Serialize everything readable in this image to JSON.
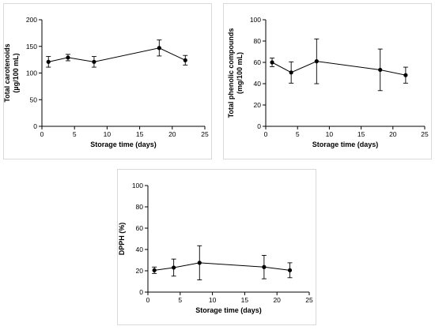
{
  "chart_data": [
    {
      "type": "line",
      "xlabel": "Storage time (days)",
      "ylabel": [
        "Total carotenoids",
        "(µg/100 mL)"
      ],
      "xlim": [
        0,
        25
      ],
      "ylim": [
        0,
        200
      ],
      "xticks": [
        0,
        5,
        10,
        15,
        20,
        25
      ],
      "yticks": [
        0,
        50,
        100,
        150,
        200
      ],
      "grid": false,
      "series": [
        {
          "x": [
            1,
            4,
            8,
            18,
            22
          ],
          "y": [
            121,
            129,
            121,
            147,
            124
          ],
          "error": [
            10,
            6,
            10,
            15,
            9
          ]
        }
      ]
    },
    {
      "type": "line",
      "xlabel": "Storage time (days)",
      "ylabel": [
        "Total phenolic compounds",
        "(mg/100 mL)"
      ],
      "xlim": [
        0,
        25
      ],
      "ylim": [
        0,
        100
      ],
      "xticks": [
        0,
        5,
        10,
        15,
        20,
        25
      ],
      "yticks": [
        0,
        20,
        40,
        60,
        80,
        100
      ],
      "grid": false,
      "series": [
        {
          "x": [
            1,
            4,
            8,
            18,
            22
          ],
          "y": [
            60,
            50.5,
            61,
            53,
            48
          ],
          "error": [
            4,
            10,
            21,
            19.5,
            7.5
          ]
        }
      ]
    },
    {
      "type": "line",
      "xlabel": "Storage time (days)",
      "ylabel": [
        "DPPH (%)"
      ],
      "xlim": [
        0,
        25
      ],
      "ylim": [
        0,
        100
      ],
      "xticks": [
        0,
        5,
        10,
        15,
        20,
        25
      ],
      "yticks": [
        0,
        20,
        40,
        60,
        80,
        100
      ],
      "grid": false,
      "series": [
        {
          "x": [
            1,
            4,
            8,
            18,
            22
          ],
          "y": [
            20.5,
            23,
            27.5,
            23.5,
            20.5
          ],
          "error": [
            3,
            8,
            16,
            11,
            7
          ]
        }
      ]
    }
  ]
}
